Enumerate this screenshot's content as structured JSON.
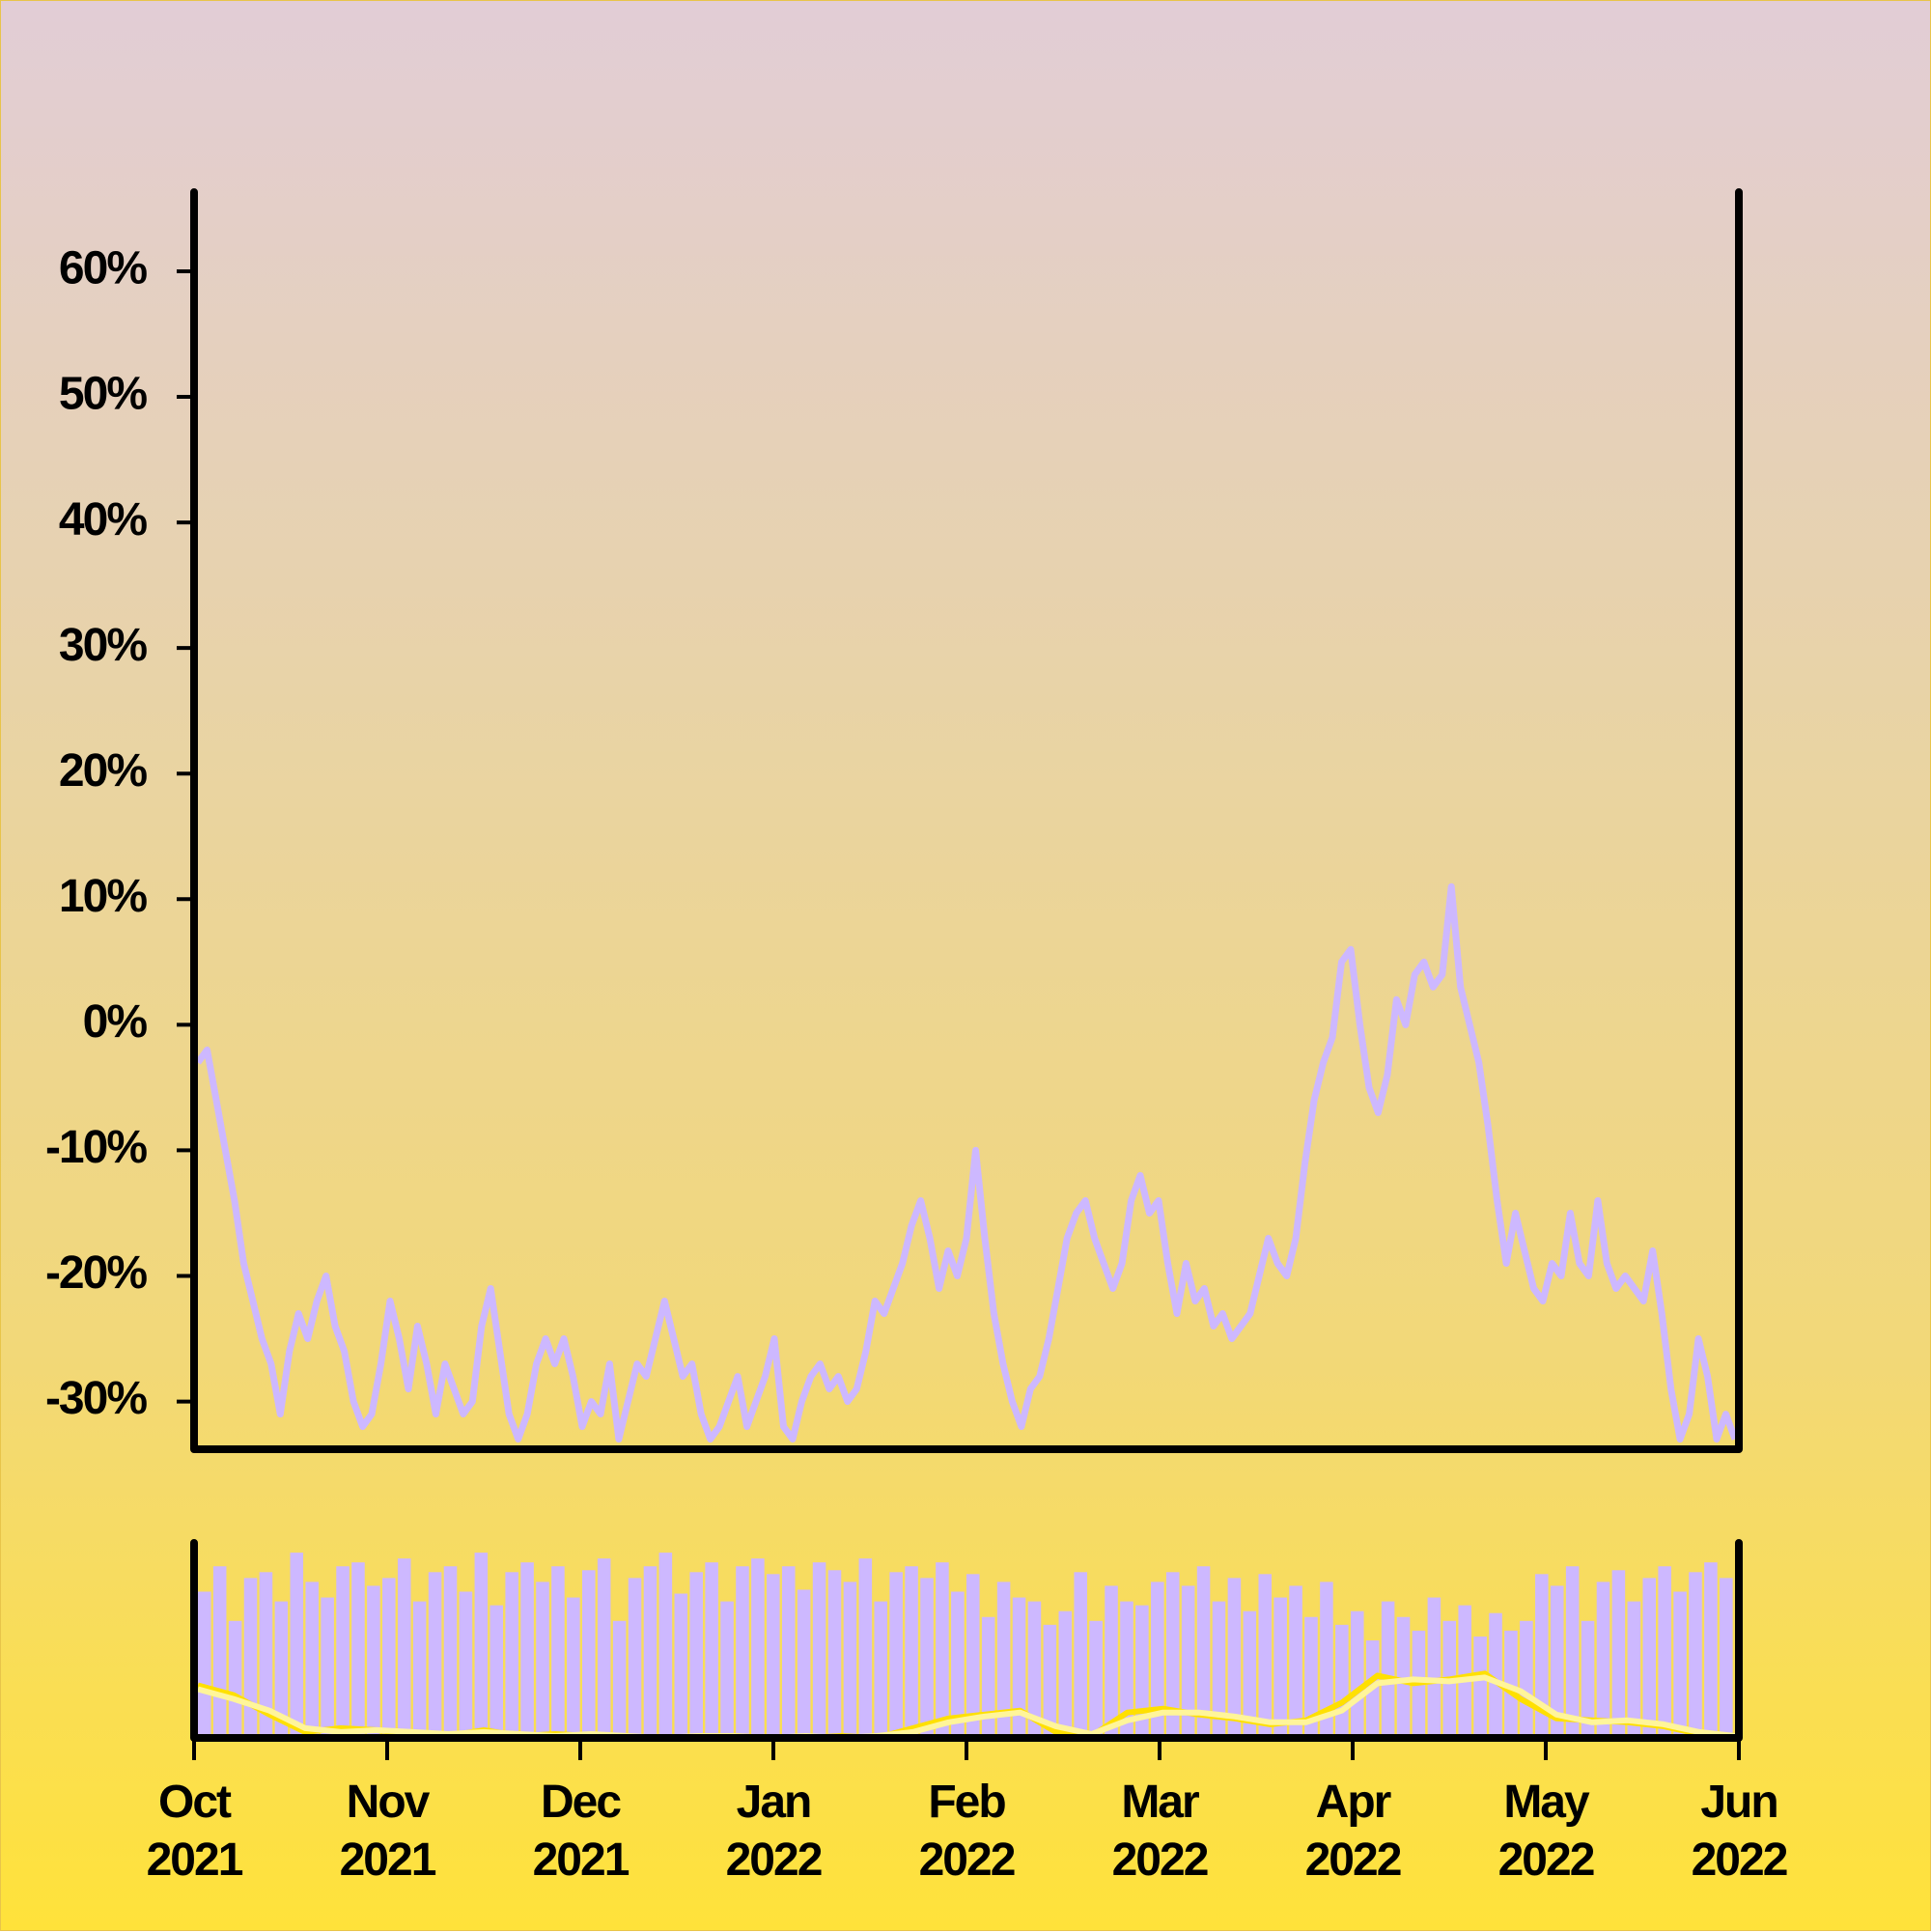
{
  "chart_data": [
    {
      "type": "line",
      "xlim": [
        "2021-10",
        "2022-06"
      ],
      "ylim": [
        -33.8,
        66.3
      ],
      "yticks": [
        {
          "value": -30,
          "label": "-30%"
        },
        {
          "value": -20,
          "label": "-20%"
        },
        {
          "value": -10,
          "label": "-10%"
        },
        {
          "value": 0,
          "label": "0%"
        },
        {
          "value": 10,
          "label": "10%"
        },
        {
          "value": 20,
          "label": "20%"
        },
        {
          "value": 30,
          "label": "30%"
        },
        {
          "value": 40,
          "label": "40%"
        },
        {
          "value": 50,
          "label": "50%"
        },
        {
          "value": 60,
          "label": "60%"
        }
      ],
      "series": [
        {
          "color": "#cdb8ff",
          "values": [
            -3,
            -2,
            -6,
            -10,
            -14,
            -19,
            -22,
            -25,
            -27,
            -31,
            -26,
            -23,
            -25,
            -22,
            -20,
            -24,
            -26,
            -30,
            -32,
            -31,
            -27,
            -22,
            -25,
            -29,
            -24,
            -27,
            -31,
            -27,
            -29,
            -31,
            -30,
            -24,
            -21,
            -26,
            -31,
            -33,
            -31,
            -27,
            -25,
            -27,
            -25,
            -28,
            -32,
            -30,
            -31,
            -27,
            -33,
            -30,
            -27,
            -28,
            -25,
            -22,
            -25,
            -28,
            -27,
            -31,
            -33,
            -32,
            -30,
            -28,
            -32,
            -30,
            -28,
            -25,
            -32,
            -33,
            -30,
            -28,
            -27,
            -29,
            -28,
            -30,
            -29,
            -26,
            -22,
            -23,
            -21,
            -19,
            -16,
            -14,
            -17,
            -21,
            -18,
            -20,
            -17,
            -10,
            -17,
            -23,
            -27,
            -30,
            -32,
            -29,
            -28,
            -25,
            -21,
            -17,
            -15,
            -14,
            -17,
            -19,
            -21,
            -19,
            -14,
            -12,
            -15,
            -14,
            -19,
            -23,
            -19,
            -22,
            -21,
            -24,
            -23,
            -25,
            -24,
            -23,
            -20,
            -17,
            -19,
            -20,
            -17,
            -11,
            -6,
            -3,
            -1,
            5,
            6,
            0,
            -5,
            -7,
            -4,
            2,
            0,
            4,
            5,
            3,
            4,
            11,
            3,
            0,
            -3,
            -8,
            -14,
            -19,
            -15,
            -18,
            -21,
            -22,
            -19,
            -20,
            -15,
            -19,
            -20,
            -14,
            -19,
            -21,
            -20,
            -21,
            -22,
            -18,
            -23,
            -29,
            -33,
            -31,
            -25,
            -28,
            -33,
            -31,
            -33
          ]
        }
      ]
    },
    {
      "type": "bar",
      "xlim": [
        "2021-10",
        "2022-06"
      ],
      "xticks": [
        {
          "value": "2021-10",
          "label": "Oct 2021"
        },
        {
          "value": "2021-11",
          "label": "Nov 2021"
        },
        {
          "value": "2021-12",
          "label": "Dec 2021"
        },
        {
          "value": "2022-01",
          "label": "Jan 2022"
        },
        {
          "value": "2022-02",
          "label": "Feb 2022"
        },
        {
          "value": "2022-03",
          "label": "Mar 2022"
        },
        {
          "value": "2022-04",
          "label": "Apr 2022"
        },
        {
          "value": "2022-05",
          "label": "May 2022"
        },
        {
          "value": "2022-06",
          "label": "Jun 2022"
        }
      ],
      "ylim": [
        0,
        100
      ],
      "color": "#cdb8ff",
      "values": [
        75,
        88,
        60,
        82,
        85,
        70,
        95,
        80,
        72,
        88,
        90,
        78,
        82,
        92,
        70,
        85,
        88,
        75,
        95,
        68,
        85,
        90,
        80,
        88,
        72,
        86,
        92,
        60,
        82,
        88,
        95,
        74,
        85,
        90,
        70,
        88,
        92,
        84,
        88,
        76,
        90,
        86,
        80,
        92,
        70,
        85,
        88,
        82,
        90,
        75,
        84,
        62,
        80,
        72,
        70,
        58,
        65,
        85,
        60,
        78,
        70,
        68,
        80,
        85,
        78,
        88,
        70,
        82,
        65,
        84,
        72,
        78,
        62,
        80,
        58,
        65,
        50,
        70,
        62,
        55,
        72,
        60,
        68,
        52,
        64,
        55,
        60,
        84,
        78,
        88,
        60,
        80,
        86,
        70,
        82,
        88,
        75,
        85,
        90,
        82
      ],
      "series": [
        {
          "type": "line",
          "color": "#ffe000",
          "values": [
            27,
            22,
            12,
            3,
            5,
            4,
            2,
            1,
            4,
            1,
            2,
            1,
            0,
            0,
            0,
            1,
            0,
            0,
            1,
            0,
            5,
            10,
            12,
            14,
            3,
            1,
            13,
            15,
            12,
            10,
            7,
            9,
            18,
            32,
            28,
            30,
            33,
            20,
            10,
            9,
            8,
            6,
            2,
            1
          ]
        },
        {
          "type": "line",
          "color": "#fff59a",
          "values": [
            25,
            20,
            14,
            5,
            3,
            4,
            3,
            2,
            3,
            2,
            1,
            2,
            1,
            0,
            1,
            1,
            0,
            1,
            0,
            1,
            3,
            8,
            11,
            13,
            6,
            2,
            9,
            13,
            13,
            11,
            8,
            8,
            14,
            28,
            30,
            29,
            31,
            24,
            12,
            8,
            9,
            7,
            3,
            1
          ]
        }
      ]
    }
  ]
}
